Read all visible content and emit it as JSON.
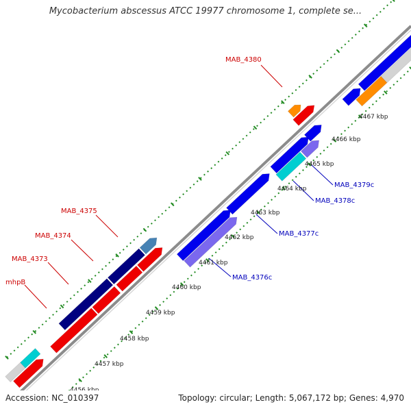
{
  "title": "Mycobacterium abscessus ATCC 19977 chromosome 1, complete se...",
  "accession": "Accession: NC_010397",
  "summary": "Topology: circular; Length: 5,067,172 bp; Genes: 4,970",
  "colors": {
    "backbone": "#8c8c8c",
    "tick": "#228b22",
    "label_forward": "#cc0000",
    "label_reverse": "#0000bb",
    "blue": "#0000ee",
    "red": "#ee0000",
    "orange": "#ff8c00",
    "navy": "#000080",
    "steelblue": "#4682b4",
    "slateblue": "#7b68ee",
    "cyan": "#00ced1",
    "lightgray": "#d3d3d3"
  },
  "ticks": [
    "4456 kbp",
    "4457 kbp",
    "4458 kbp",
    "4459 kbp",
    "4460 kbp",
    "4461 kbp",
    "4462 kbp",
    "4463 kbp",
    "4464 kbp",
    "4465 kbp",
    "4466 kbp",
    "4467 kbp"
  ],
  "gene_labels": [
    {
      "name": "MAB_4380",
      "strand": "forward"
    },
    {
      "name": "MAB_4375",
      "strand": "forward"
    },
    {
      "name": "MAB_4374",
      "strand": "forward"
    },
    {
      "name": "MAB_4373",
      "strand": "forward"
    },
    {
      "name": "mhpB",
      "strand": "forward"
    },
    {
      "name": "MAB_4379c",
      "strand": "reverse"
    },
    {
      "name": "MAB_4378c",
      "strand": "reverse"
    },
    {
      "name": "MAB_4377c",
      "strand": "reverse"
    },
    {
      "name": "MAB_4376c",
      "strand": "reverse"
    }
  ]
}
